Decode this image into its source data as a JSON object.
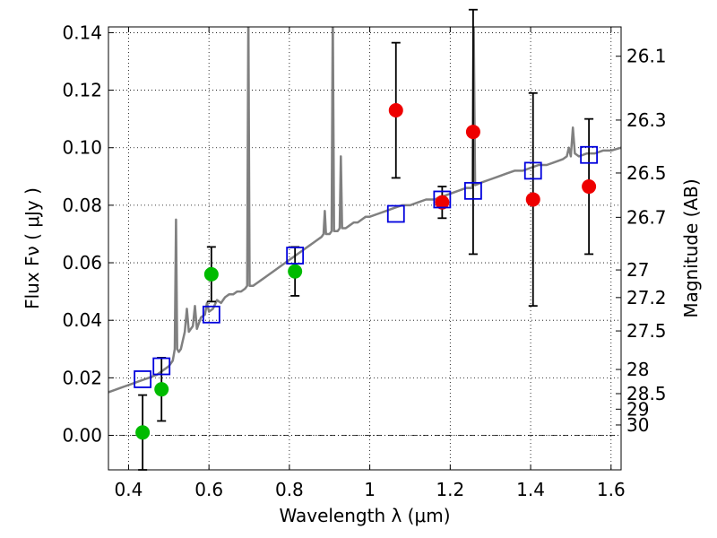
{
  "chart_data": {
    "type": "scatter",
    "xlabel": "Wavelength  λ (μm)",
    "ylabel": "Flux  Fν  ( μJy )",
    "y2label": "Magnitude (AB)",
    "xlim": [
      0.35,
      1.625
    ],
    "ylim": [
      -0.012,
      0.142
    ],
    "x_ticks": [
      0.4,
      0.6,
      0.8,
      1.0,
      1.2,
      1.4,
      1.6
    ],
    "x_tick_labels": [
      "0.4",
      "0.6",
      "0.8",
      "1",
      "1.2",
      "1.4",
      "1.6"
    ],
    "y_ticks": [
      0.0,
      0.02,
      0.04,
      0.06,
      0.08,
      0.1,
      0.12,
      0.14
    ],
    "y_tick_labels": [
      "0.00",
      "0.02",
      "0.04",
      "0.06",
      "0.08",
      "0.10",
      "0.12",
      "0.14"
    ],
    "mag_ticks": [
      {
        "label": "26.1",
        "flux": 0.1318
      },
      {
        "label": "26.3",
        "flux": 0.1096
      },
      {
        "label": "26.5",
        "flux": 0.0912
      },
      {
        "label": "26.7",
        "flux": 0.0758
      },
      {
        "label": "27",
        "flux": 0.0575
      },
      {
        "label": "27.2",
        "flux": 0.0479
      },
      {
        "label": "27.5",
        "flux": 0.0363
      },
      {
        "label": "28",
        "flux": 0.0229
      },
      {
        "label": "28.5",
        "flux": 0.0145
      },
      {
        "label": "29",
        "flux": 0.0091
      },
      {
        "label": "30",
        "flux": 0.0036
      }
    ],
    "grid": true,
    "series": [
      {
        "name": "green photometry",
        "color": "#00bb00",
        "marker": "circle",
        "points": [
          {
            "x": 0.435,
            "y": 0.001,
            "err": 0.013
          },
          {
            "x": 0.482,
            "y": 0.016,
            "err": 0.011
          },
          {
            "x": 0.606,
            "y": 0.056,
            "err": 0.0095
          },
          {
            "x": 0.814,
            "y": 0.057,
            "err": 0.0085
          }
        ]
      },
      {
        "name": "red photometry",
        "color": "#ee0000",
        "marker": "circle",
        "points": [
          {
            "x": 1.065,
            "y": 0.113,
            "err": 0.0235
          },
          {
            "x": 1.18,
            "y": 0.081,
            "err": 0.0055
          },
          {
            "x": 1.257,
            "y": 0.1055,
            "err": 0.0425
          },
          {
            "x": 1.406,
            "y": 0.082,
            "err": 0.037
          },
          {
            "x": 1.545,
            "y": 0.0865,
            "err": 0.0235
          }
        ]
      },
      {
        "name": "model band flux",
        "color": "#0000dd",
        "marker": "square",
        "points": [
          {
            "x": 0.435,
            "y": 0.0195
          },
          {
            "x": 0.482,
            "y": 0.024
          },
          {
            "x": 0.606,
            "y": 0.042
          },
          {
            "x": 0.814,
            "y": 0.0625
          },
          {
            "x": 1.065,
            "y": 0.077
          },
          {
            "x": 1.18,
            "y": 0.082
          },
          {
            "x": 1.257,
            "y": 0.085
          },
          {
            "x": 1.406,
            "y": 0.092
          },
          {
            "x": 1.545,
            "y": 0.0975
          }
        ]
      }
    ],
    "spectrum": {
      "name": "model spectrum",
      "color": "#808080",
      "points": [
        [
          0.35,
          0.015
        ],
        [
          0.36,
          0.0155
        ],
        [
          0.37,
          0.016
        ],
        [
          0.38,
          0.0165
        ],
        [
          0.39,
          0.017
        ],
        [
          0.4,
          0.0175
        ],
        [
          0.41,
          0.018
        ],
        [
          0.42,
          0.0185
        ],
        [
          0.43,
          0.019
        ],
        [
          0.44,
          0.0195
        ],
        [
          0.45,
          0.02
        ],
        [
          0.46,
          0.0205
        ],
        [
          0.47,
          0.021
        ],
        [
          0.48,
          0.022
        ],
        [
          0.49,
          0.023
        ],
        [
          0.5,
          0.024
        ],
        [
          0.51,
          0.026
        ],
        [
          0.515,
          0.03
        ],
        [
          0.518,
          0.075
        ],
        [
          0.521,
          0.03
        ],
        [
          0.525,
          0.029
        ],
        [
          0.53,
          0.03
        ],
        [
          0.54,
          0.036
        ],
        [
          0.545,
          0.044
        ],
        [
          0.55,
          0.036
        ],
        [
          0.56,
          0.038
        ],
        [
          0.565,
          0.045
        ],
        [
          0.57,
          0.037
        ],
        [
          0.58,
          0.041
        ],
        [
          0.59,
          0.042
        ],
        [
          0.595,
          0.046
        ],
        [
          0.6,
          0.043
        ],
        [
          0.61,
          0.044
        ],
        [
          0.62,
          0.047
        ],
        [
          0.63,
          0.046
        ],
        [
          0.64,
          0.048
        ],
        [
          0.65,
          0.049
        ],
        [
          0.66,
          0.049
        ],
        [
          0.67,
          0.05
        ],
        [
          0.68,
          0.05
        ],
        [
          0.69,
          0.051
        ],
        [
          0.695,
          0.052
        ],
        [
          0.698,
          0.148
        ],
        [
          0.701,
          0.052
        ],
        [
          0.71,
          0.052
        ],
        [
          0.72,
          0.053
        ],
        [
          0.73,
          0.054
        ],
        [
          0.74,
          0.055
        ],
        [
          0.75,
          0.056
        ],
        [
          0.76,
          0.057
        ],
        [
          0.77,
          0.058
        ],
        [
          0.78,
          0.059
        ],
        [
          0.79,
          0.06
        ],
        [
          0.8,
          0.061
        ],
        [
          0.81,
          0.062
        ],
        [
          0.82,
          0.063
        ],
        [
          0.83,
          0.064
        ],
        [
          0.84,
          0.065
        ],
        [
          0.85,
          0.066
        ],
        [
          0.86,
          0.067
        ],
        [
          0.87,
          0.068
        ],
        [
          0.88,
          0.069
        ],
        [
          0.885,
          0.07
        ],
        [
          0.888,
          0.078
        ],
        [
          0.891,
          0.07
        ],
        [
          0.9,
          0.07
        ],
        [
          0.905,
          0.071
        ],
        [
          0.908,
          0.148
        ],
        [
          0.911,
          0.071
        ],
        [
          0.92,
          0.071
        ],
        [
          0.925,
          0.072
        ],
        [
          0.928,
          0.097
        ],
        [
          0.931,
          0.072
        ],
        [
          0.94,
          0.072
        ],
        [
          0.95,
          0.073
        ],
        [
          0.96,
          0.074
        ],
        [
          0.97,
          0.074
        ],
        [
          0.98,
          0.075
        ],
        [
          0.99,
          0.076
        ],
        [
          1.0,
          0.076
        ],
        [
          1.02,
          0.077
        ],
        [
          1.04,
          0.078
        ],
        [
          1.06,
          0.079
        ],
        [
          1.08,
          0.08
        ],
        [
          1.1,
          0.08
        ],
        [
          1.12,
          0.081
        ],
        [
          1.14,
          0.082
        ],
        [
          1.16,
          0.082
        ],
        [
          1.18,
          0.083
        ],
        [
          1.2,
          0.084
        ],
        [
          1.22,
          0.085
        ],
        [
          1.24,
          0.086
        ],
        [
          1.255,
          0.086
        ],
        [
          1.258,
          0.148
        ],
        [
          1.262,
          0.087
        ],
        [
          1.28,
          0.088
        ],
        [
          1.3,
          0.089
        ],
        [
          1.32,
          0.09
        ],
        [
          1.34,
          0.091
        ],
        [
          1.36,
          0.092
        ],
        [
          1.38,
          0.092
        ],
        [
          1.4,
          0.093
        ],
        [
          1.42,
          0.094
        ],
        [
          1.44,
          0.094
        ],
        [
          1.46,
          0.095
        ],
        [
          1.48,
          0.096
        ],
        [
          1.49,
          0.097
        ],
        [
          1.495,
          0.1
        ],
        [
          1.5,
          0.097
        ],
        [
          1.505,
          0.107
        ],
        [
          1.51,
          0.098
        ],
        [
          1.52,
          0.097
        ],
        [
          1.54,
          0.098
        ],
        [
          1.56,
          0.098
        ],
        [
          1.58,
          0.099
        ],
        [
          1.6,
          0.099
        ],
        [
          1.625,
          0.1
        ]
      ]
    }
  }
}
